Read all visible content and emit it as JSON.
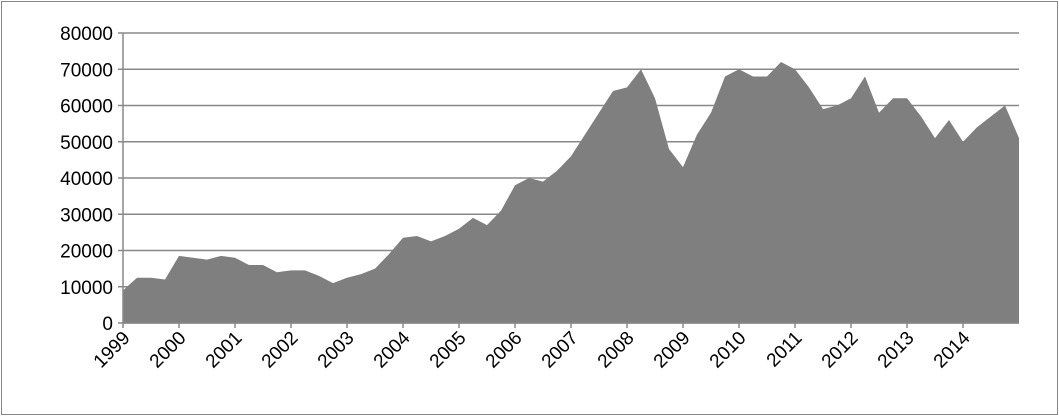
{
  "chart_data": {
    "type": "area",
    "categories": [
      "1999",
      null,
      null,
      null,
      "2000",
      null,
      null,
      null,
      "2001",
      null,
      null,
      null,
      "2002",
      null,
      null,
      null,
      "2003",
      null,
      null,
      null,
      "2004",
      null,
      null,
      null,
      "2005",
      null,
      null,
      null,
      "2006",
      null,
      null,
      null,
      "2007",
      null,
      null,
      null,
      "2008",
      null,
      null,
      null,
      "2009",
      null,
      null,
      null,
      "2010",
      null,
      null,
      null,
      "2011",
      null,
      null,
      null,
      "2012",
      null,
      null,
      null,
      "2013",
      null,
      null,
      null,
      "2014",
      null,
      null,
      null,
      null
    ],
    "values": [
      9000,
      12500,
      12500,
      12000,
      18500,
      18000,
      17500,
      18500,
      18000,
      16000,
      16000,
      14000,
      14500,
      14500,
      13000,
      11000,
      12500,
      13500,
      15000,
      19000,
      23500,
      24000,
      22500,
      24000,
      26000,
      29000,
      27000,
      31000,
      38000,
      40000,
      39000,
      42000,
      46000,
      52000,
      58000,
      64000,
      65000,
      70000,
      62000,
      48000,
      43000,
      52000,
      58000,
      68000,
      70000,
      68000,
      68000,
      72000,
      70000,
      65000,
      59000,
      60000,
      62000,
      68000,
      58000,
      62000,
      62000,
      57000,
      51000,
      56000,
      50000,
      54000,
      57000,
      60000,
      51000
    ],
    "color": "#7f7f80",
    "ylim": [
      0,
      80000
    ],
    "yticks": [
      0,
      10000,
      20000,
      30000,
      40000,
      50000,
      60000,
      70000,
      80000
    ],
    "grid": true
  }
}
